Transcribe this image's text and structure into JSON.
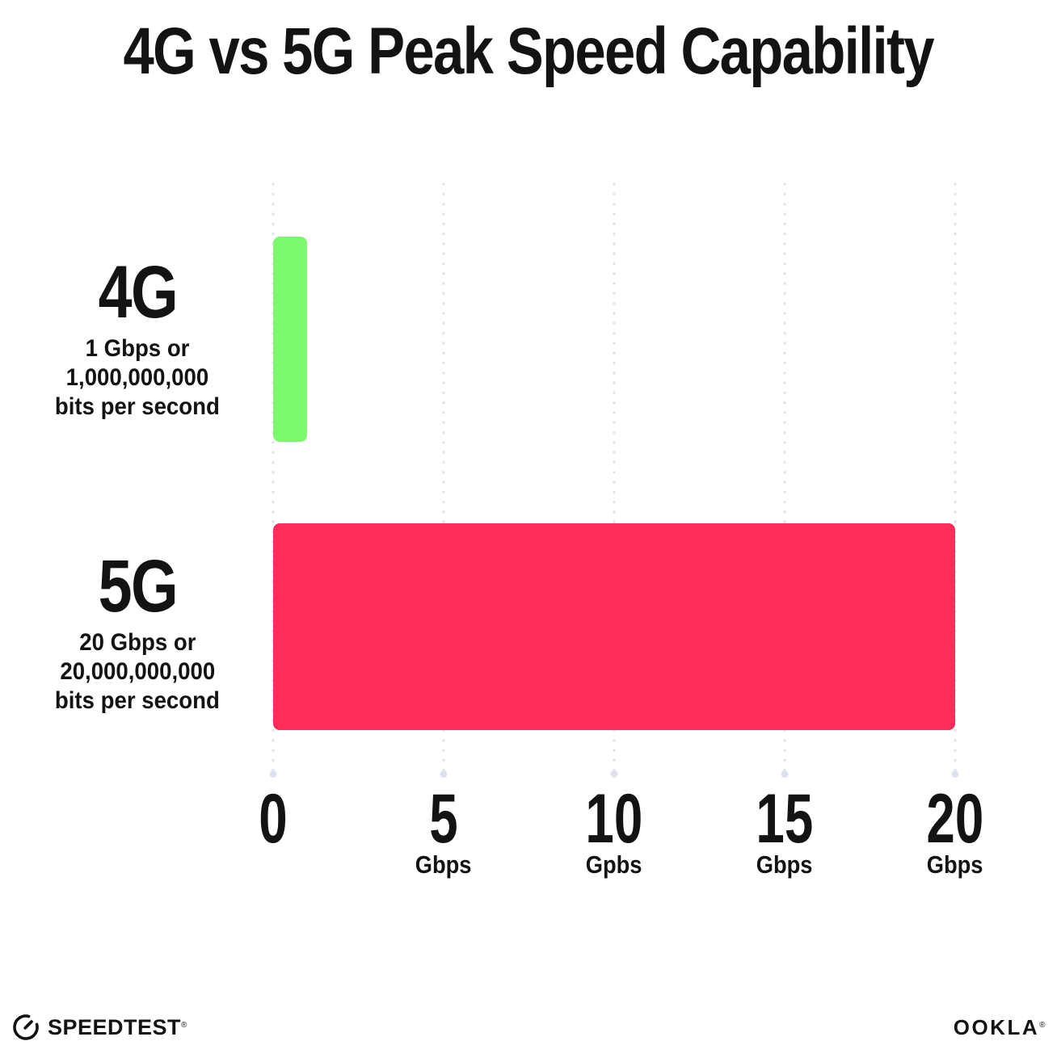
{
  "title": "4G vs 5G Peak Speed Capability",
  "chart_data": {
    "type": "bar",
    "orientation": "horizontal",
    "title": "4G vs 5G Peak Speed Capability",
    "categories": [
      "4G",
      "5G"
    ],
    "values": [
      1,
      20
    ],
    "xlim": [
      0,
      20
    ],
    "grid": "dotted-vertical-gridlines",
    "legend": "none",
    "bars": [
      {
        "label": "4G",
        "sublabel_lines": [
          "1 Gbps or",
          "1,000,000,000",
          "bits per second"
        ],
        "value": 1,
        "color": "#7CF96D"
      },
      {
        "label": "5G",
        "sublabel_lines": [
          "20 Gbps or",
          "20,000,000,000",
          "bits per second"
        ],
        "value": 20,
        "color": "#FE2D5A"
      }
    ],
    "x_ticks": [
      {
        "number": "0",
        "unit": ""
      },
      {
        "number": "5",
        "unit": "Gbps"
      },
      {
        "number": "10",
        "unit": "Gpbs"
      },
      {
        "number": "15",
        "unit": "Gbps"
      },
      {
        "number": "20",
        "unit": "Gbps"
      }
    ]
  },
  "footer": {
    "speedtest_label": "SPEEDTEST",
    "speedtest_mark": "®",
    "ookla_label": "OOKLA",
    "ookla_mark": "®"
  },
  "colors": {
    "bar_4g": "#7CF96D",
    "bar_5g": "#FE2D5A",
    "grid_dot": "#DFE1EC",
    "text": "#131313",
    "background": "#FFFFFF"
  }
}
